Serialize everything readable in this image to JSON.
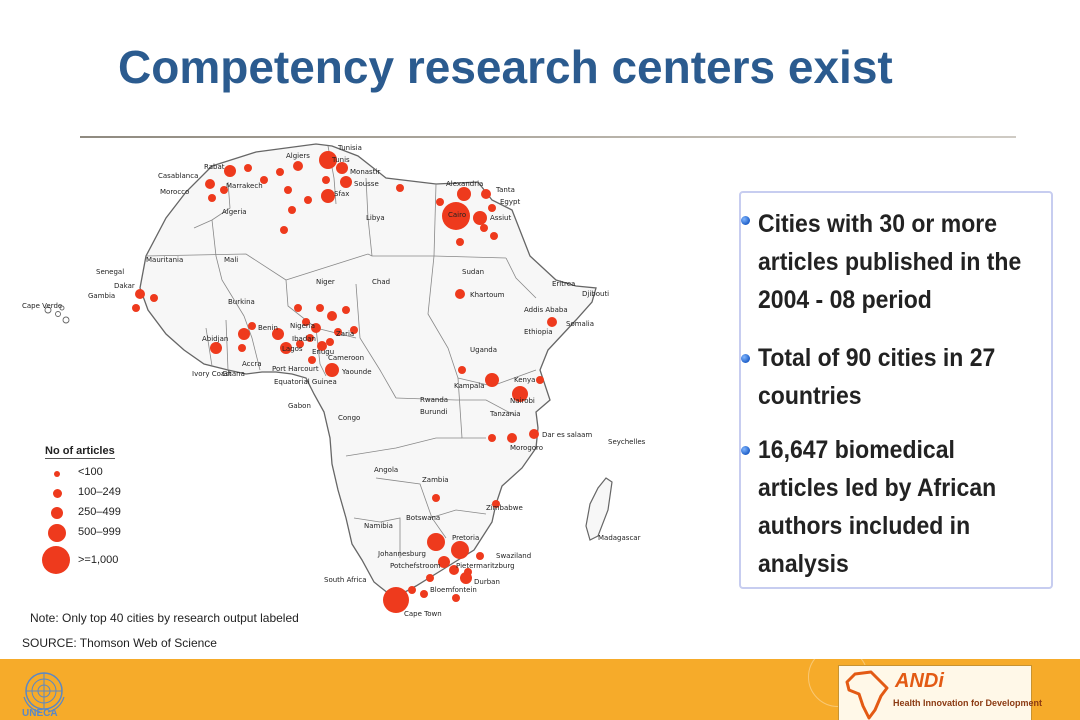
{
  "slide": {
    "title": "Competency research centers exist",
    "note": "Note: Only top 40 cities by research output labeled",
    "source": "SOURCE: Thomson Web of Science"
  },
  "legend": {
    "title": "No of articles",
    "items": [
      "<100",
      "100–249",
      "250–499",
      "500–999",
      ">=1,000"
    ]
  },
  "bullets": [
    "Cities with 30 or more articles published in the 2004 - 08 period",
    "Total of 90 cities in 27 countries",
    "16,647 biomedical articles led by African authors included in analysis"
  ],
  "map_labels": {
    "cities": [
      "Rabat",
      "Casablanca",
      "Marrakech",
      "Algiers",
      "Tunis",
      "Monastir",
      "Sousse",
      "Sfax",
      "Alexandria",
      "Tanta",
      "Cairo",
      "Assiut",
      "Dakar",
      "Abidjan",
      "Accra",
      "Ibadan",
      "Lagos",
      "Port Harcourt",
      "Zaria",
      "Enugu",
      "Yaounde",
      "Khartoum",
      "Addis Ababa",
      "Kampala",
      "Nairobi",
      "Dar es salaam",
      "Morogoro",
      "Pretoria",
      "Johannesburg",
      "Potchefstroom",
      "Pietermaritzburg",
      "Durban",
      "Bloemfontein",
      "Cape Town"
    ],
    "countries": [
      "Morocco",
      "Algeria",
      "Tunisia",
      "Libya",
      "Egypt",
      "Senegal",
      "Gambia",
      "Cape Verde",
      "Mauritania",
      "Mali",
      "Niger",
      "Chad",
      "Sudan",
      "Eritrea",
      "Djibouti",
      "Ethiopia",
      "Somalia",
      "Burkina",
      "Benin",
      "Nigeria",
      "Ghana",
      "Ivory Coast",
      "Cameroon",
      "Equatorial Guinea",
      "Gabon",
      "Congo",
      "Uganda",
      "Kenya",
      "Rwanda",
      "Burundi",
      "Tanzania",
      "Seychelles",
      "Angola",
      "Zambia",
      "Zimbabwe",
      "Namibia",
      "Botswana",
      "Swaziland",
      "South Africa",
      "Madagascar"
    ]
  },
  "footer": {
    "un_label": "UNECA",
    "andi_name": "ANDi",
    "andi_tagline": "Health Innovation for Development"
  },
  "colors": {
    "title": "#2b5b8f",
    "dot": "#ee3a1d",
    "footer": "#f6ab2a",
    "bullet_border": "#c7cdf0"
  }
}
